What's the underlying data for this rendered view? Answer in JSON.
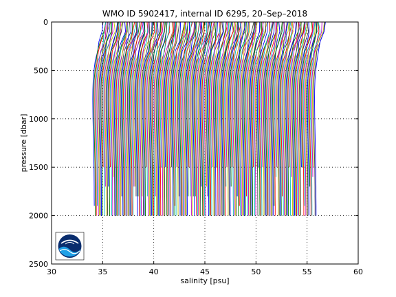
{
  "chart_data": {
    "type": "line",
    "title": "WMO ID 5902417, internal ID 6295, 20–Sep–2018",
    "xlabel": "salinity [psu]",
    "ylabel": "pressure [dbar]",
    "xlim": [
      30,
      60
    ],
    "ylim": [
      2500,
      0
    ],
    "y_reversed": true,
    "grid": true,
    "grid_style": "dotted",
    "legend": "none",
    "x_ticks": [
      "30",
      "35",
      "40",
      "45",
      "50",
      "55",
      "60"
    ],
    "y_ticks": [
      "0",
      "500",
      "1000",
      "1500",
      "2000",
      "2500"
    ],
    "profile_offset": 0.1,
    "profile_count": 218,
    "first_profile_start_salinity": 35.0,
    "base_profile": {
      "pressure": [
        0,
        100,
        200,
        300,
        400,
        500,
        600,
        700,
        800,
        900,
        1000,
        1100,
        1200,
        1300,
        1400,
        1500,
        1600,
        1700,
        1800,
        1900,
        2000
      ],
      "salinity": [
        35.55,
        35.5,
        35.25,
        35.0,
        34.82,
        34.7,
        34.62,
        34.59,
        34.58,
        34.59,
        34.6,
        34.62,
        34.64,
        34.66,
        34.68,
        34.7,
        34.71,
        34.72,
        34.72,
        34.73,
        34.73
      ]
    },
    "line_colors": [
      "#0000ff",
      "#008000",
      "#ff0000",
      "#00bfbf",
      "#bf00bf",
      "#bfbf00",
      "#3f3f3f"
    ],
    "logo": "noaa-logo"
  }
}
